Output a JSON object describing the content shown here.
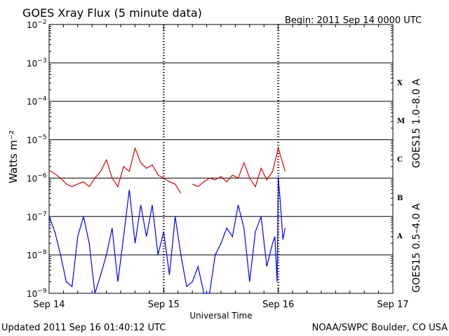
{
  "header": {
    "title": "GOES Xray Flux (5 minute data)",
    "begin": "Begin:  2011 Sep 14 0000 UTC"
  },
  "footer": {
    "updated": "Updated 2011 Sep 16 01:40:12 UTC",
    "credit": "NOAA/SWPC Boulder, CO USA"
  },
  "chart_data": {
    "type": "line",
    "title": "GOES Xray Flux (5 minute data)",
    "xlabel": "Universal Time",
    "ylabel": "Watts m⁻²",
    "yscale": "log",
    "ylim": [
      1e-09,
      0.01
    ],
    "xlim": [
      "2011-09-14",
      "2011-09-17"
    ],
    "x_ticks": [
      "Sep 14",
      "Sep 15",
      "Sep 16",
      "Sep 17"
    ],
    "y_ticks": [
      {
        "base": "10",
        "exp": "−2"
      },
      {
        "base": "10",
        "exp": "−3"
      },
      {
        "base": "10",
        "exp": "−4"
      },
      {
        "base": "10",
        "exp": "−5"
      },
      {
        "base": "10",
        "exp": "−6"
      },
      {
        "base": "10",
        "exp": "−7"
      },
      {
        "base": "10",
        "exp": "−8"
      },
      {
        "base": "10",
        "exp": "−9"
      }
    ],
    "flare_classes": [
      "X",
      "M",
      "C",
      "B",
      "A"
    ],
    "grid": true,
    "series": [
      {
        "name": "GOES15 1.0–8.0 A",
        "color": "#dd0000",
        "x_unit": "days since 2011-09-14 00:00 UTC",
        "x": [
          0,
          0.05,
          0.1,
          0.15,
          0.2,
          0.25,
          0.3,
          0.35,
          0.4,
          0.45,
          0.5,
          0.55,
          0.6,
          0.65,
          0.7,
          0.75,
          0.8,
          0.85,
          0.9,
          0.95,
          1.0,
          1.05,
          1.1,
          1.15,
          1.2,
          1.25,
          1.3,
          1.35,
          1.4,
          1.45,
          1.5,
          1.55,
          1.6,
          1.65,
          1.7,
          1.75,
          1.8,
          1.85,
          1.9,
          1.95,
          2.0,
          2.03,
          2.06
        ],
        "y": [
          1.6e-06,
          1.3e-06,
          1e-06,
          7e-07,
          6e-07,
          7e-07,
          8e-07,
          6e-07,
          1e-06,
          1.5e-06,
          3e-06,
          1e-06,
          6e-07,
          2e-06,
          1.5e-06,
          6e-06,
          2.5e-06,
          1.8e-06,
          2.2e-06,
          1.2e-06,
          1e-06,
          8e-07,
          7e-07,
          4e-07,
          null,
          7e-07,
          6e-07,
          8e-07,
          1e-06,
          9e-07,
          1.1e-06,
          8e-07,
          1.2e-06,
          1e-06,
          2.5e-06,
          1e-06,
          6e-07,
          1.8e-06,
          9e-07,
          1.5e-06,
          6e-06,
          3e-06,
          1.5e-06
        ]
      },
      {
        "name": "GOES15 0.5–4.0 A",
        "color": "#0000ff",
        "x_unit": "days since 2011-09-14 00:00 UTC",
        "x": [
          0,
          0.05,
          0.1,
          0.15,
          0.2,
          0.25,
          0.3,
          0.35,
          0.4,
          0.45,
          0.5,
          0.55,
          0.6,
          0.65,
          0.7,
          0.75,
          0.8,
          0.85,
          0.9,
          0.95,
          1.0,
          1.05,
          1.1,
          1.15,
          1.2,
          1.25,
          1.3,
          1.35,
          1.4,
          1.45,
          1.5,
          1.55,
          1.6,
          1.65,
          1.7,
          1.75,
          1.8,
          1.85,
          1.9,
          1.95,
          1.97,
          1.99,
          2.0,
          2.02,
          2.04,
          2.06
        ],
        "y": [
          1e-07,
          4e-08,
          1e-08,
          2e-09,
          1.5e-09,
          3e-08,
          1e-07,
          2e-08,
          1e-09,
          3e-09,
          1e-08,
          5e-08,
          2e-09,
          3e-08,
          5e-07,
          2e-08,
          2e-07,
          3e-08,
          2e-07,
          1e-08,
          4e-08,
          3e-09,
          1e-07,
          1e-08,
          1.5e-09,
          2e-09,
          5e-09,
          1e-09,
          1e-09,
          1e-08,
          2e-08,
          5e-08,
          3e-08,
          2e-07,
          5e-08,
          2e-09,
          4e-08,
          1e-07,
          5e-09,
          2e-08,
          3e-08,
          2e-09,
          1e-06,
          2e-07,
          2.5e-08,
          5e-08
        ]
      }
    ]
  }
}
